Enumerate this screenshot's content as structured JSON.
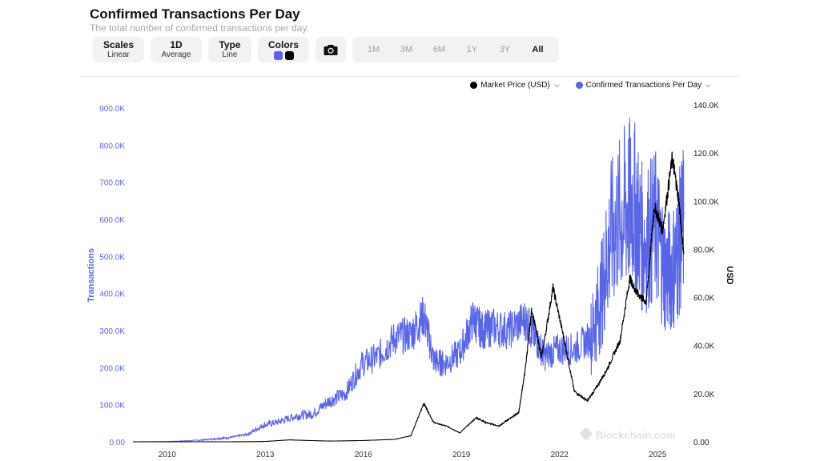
{
  "header": {
    "title": "Confirmed Transactions Per Day",
    "subtitle": "The total number of confirmed transactions per day."
  },
  "toolbar": {
    "scales": {
      "label": "Scales",
      "value": "Linear"
    },
    "average": {
      "label": "1D",
      "value": "Average"
    },
    "type": {
      "label": "Type",
      "value": "Line"
    },
    "colors": {
      "label": "Colors",
      "swatch1": "#5865e6",
      "swatch2": "#000000"
    },
    "camera_icon": "camera-icon",
    "ranges": [
      "1M",
      "3M",
      "6M",
      "1Y",
      "3Y",
      "All"
    ],
    "active_range": "All"
  },
  "legend": {
    "price": "Market Price (USD)",
    "transactions": "Confirmed Transactions Per Day"
  },
  "watermark": "Blockchain.com",
  "chart_data": {
    "type": "line",
    "x_ticks": [
      "2010",
      "2013",
      "2016",
      "2019",
      "2022",
      "2025"
    ],
    "y_left": {
      "label": "Transactions",
      "ticks": [
        "0.00",
        "100.0K",
        "200.0K",
        "300.0K",
        "400.0K",
        "500.0K",
        "600.0K",
        "700.0K",
        "800.0K",
        "900.0K"
      ],
      "range": [
        0,
        900000
      ]
    },
    "y_right": {
      "label": "USD",
      "ticks": [
        "0.00",
        "20.0K",
        "40.0K",
        "60.0K",
        "80.0K",
        "100.0K",
        "120.0K",
        "140.0K"
      ],
      "range": [
        0,
        140000
      ]
    },
    "series": [
      {
        "name": "Confirmed Transactions Per Day",
        "color": "#5865e6",
        "axis": "left",
        "x": [
          2009.0,
          2010.0,
          2011.0,
          2011.5,
          2012.0,
          2012.5,
          2013.0,
          2013.5,
          2014.0,
          2014.5,
          2015.0,
          2015.5,
          2016.0,
          2016.5,
          2017.0,
          2017.5,
          2017.9,
          2018.2,
          2018.5,
          2019.0,
          2019.4,
          2019.7,
          2020.0,
          2020.5,
          2021.0,
          2021.3,
          2021.6,
          2022.0,
          2022.5,
          2023.0,
          2023.3,
          2023.6,
          2024.0,
          2024.3,
          2024.6,
          2025.0,
          2025.3,
          2025.6,
          2025.85
        ],
        "y": [
          0,
          500,
          4000,
          8000,
          12000,
          20000,
          45000,
          55000,
          70000,
          75000,
          110000,
          130000,
          210000,
          230000,
          280000,
          290000,
          340000,
          220000,
          210000,
          240000,
          330000,
          300000,
          310000,
          300000,
          330000,
          280000,
          230000,
          250000,
          250000,
          280000,
          380000,
          550000,
          620000,
          650000,
          540000,
          580000,
          450000,
          480000,
          600000
        ]
      },
      {
        "name": "Market Price (USD)",
        "color": "#000000",
        "axis": "right",
        "x": [
          2009.0,
          2010.0,
          2011.0,
          2012.0,
          2013.0,
          2013.8,
          2014.2,
          2015.0,
          2016.0,
          2017.0,
          2017.5,
          2017.9,
          2018.2,
          2018.6,
          2019.0,
          2019.5,
          2019.8,
          2020.2,
          2020.5,
          2020.8,
          2021.0,
          2021.2,
          2021.5,
          2021.85,
          2022.2,
          2022.5,
          2022.9,
          2023.2,
          2023.5,
          2023.9,
          2024.2,
          2024.4,
          2024.7,
          2024.95,
          2025.2,
          2025.5,
          2025.7,
          2025.85
        ],
        "y": [
          0,
          0,
          0,
          10,
          100,
          800,
          600,
          300,
          500,
          1000,
          2500,
          16000,
          8000,
          6500,
          3700,
          10000,
          8000,
          6500,
          9500,
          12000,
          30000,
          55000,
          35000,
          64000,
          42000,
          21000,
          17000,
          23000,
          30000,
          42000,
          68000,
          62000,
          58000,
          98000,
          88000,
          118000,
          100000,
          78000
        ]
      }
    ],
    "legend_position": "top-right",
    "grid": false
  }
}
